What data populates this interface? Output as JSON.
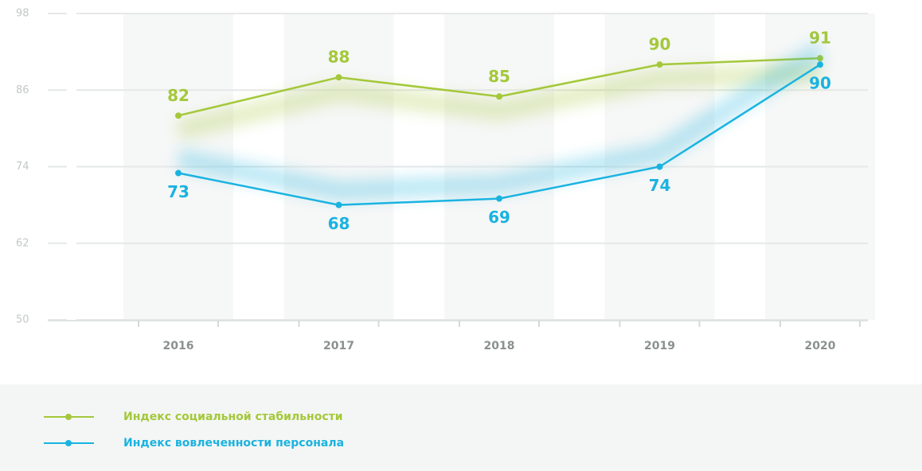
{
  "chart_data": {
    "type": "line",
    "categories": [
      "2016",
      "2017",
      "2018",
      "2019",
      "2020"
    ],
    "series": [
      {
        "name": "Индекс социальной стабильности",
        "color": "#a4c83a",
        "values": [
          82,
          88,
          85,
          90,
          91
        ]
      },
      {
        "name": "Индекс вовлеченности персонала",
        "color": "#1ab3e0",
        "values": [
          73,
          68,
          69,
          74,
          90
        ]
      }
    ],
    "ylim": [
      50,
      98
    ],
    "yticks": [
      50,
      62,
      74,
      86,
      98
    ],
    "grid": true
  }
}
